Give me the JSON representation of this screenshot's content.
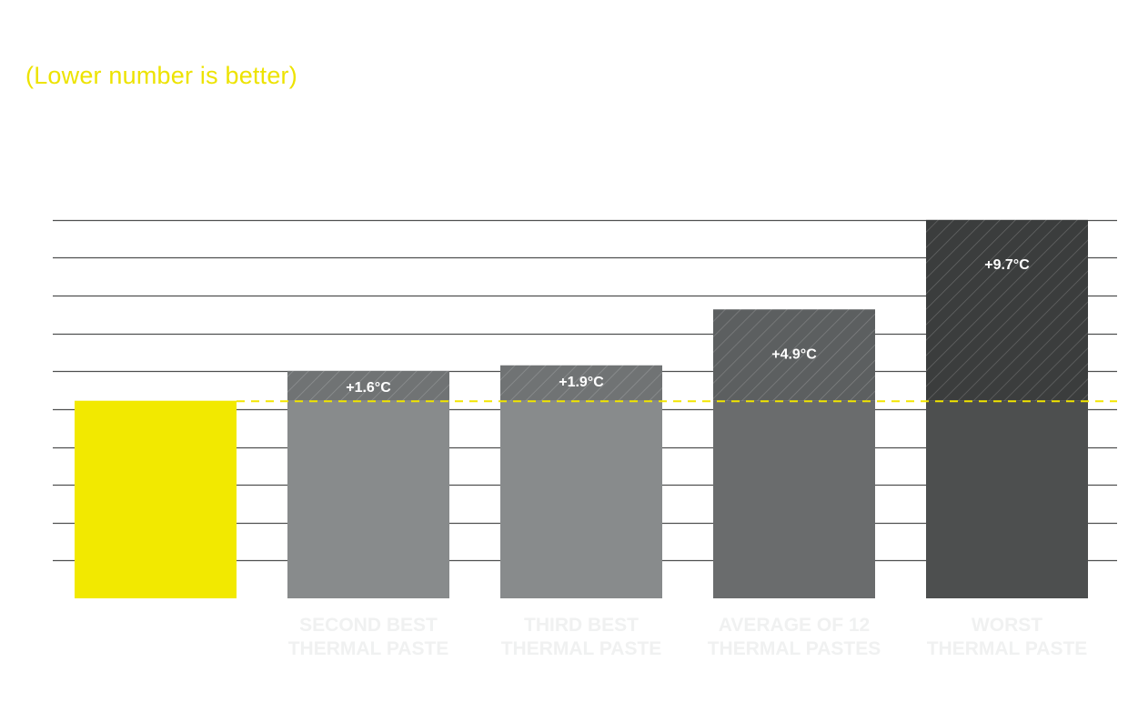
{
  "chart_data": {
    "type": "bar",
    "subtitle": "(Lower number is better)",
    "categories": [
      "",
      "SECOND BEST THERMAL PASTE",
      "THIRD BEST THERMAL PASTE",
      "AVERAGE OF 12 THERMAL PASTES",
      "WORST THERMAL PASTE"
    ],
    "category_lines": [
      [],
      [
        "SECOND BEST",
        "THERMAL PASTE"
      ],
      [
        "THIRD BEST",
        "THERMAL PASTE"
      ],
      [
        "AVERAGE OF 12",
        "THERMAL PASTES"
      ],
      [
        "WORST",
        "THERMAL PASTE"
      ]
    ],
    "values": [
      0,
      1.6,
      1.9,
      4.9,
      9.7
    ],
    "value_labels": [
      "",
      "+1.6°C",
      "+1.9°C",
      "+4.9°C",
      "+9.7°C"
    ],
    "baseline_units": 10.6,
    "ylim": [
      0,
      20.3
    ],
    "gridlines": 10,
    "reference_line": "baseline (dashed, yellow)",
    "grid": true,
    "colors": {
      "title": "#ede300",
      "reference": "#f2e600",
      "grid": "#4f5050",
      "bars": [
        "#f2e900",
        "#888b8c",
        "#888b8c",
        "#6a6c6d",
        "#4d4f4f"
      ],
      "hatch_fill": [
        "#f2e900",
        "#707374",
        "#707374",
        "#5c5f60",
        "#3b3d3d"
      ]
    }
  }
}
